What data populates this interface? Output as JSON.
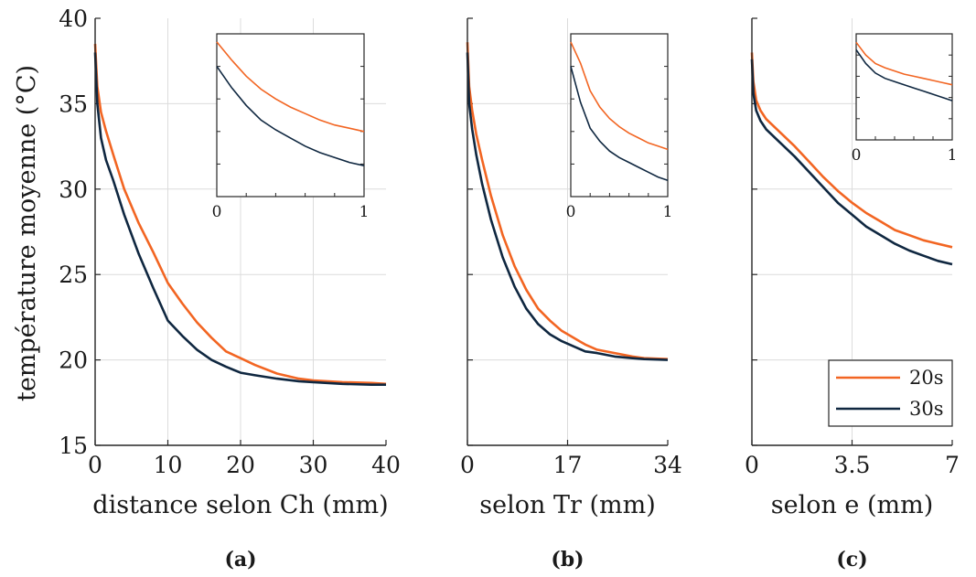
{
  "figure": {
    "ylabel": "température moyenne (°C)",
    "colors": {
      "20s": "#f26522",
      "30s": "#0f2740",
      "grid": "#dcdcdc",
      "axis": "#262626"
    }
  },
  "legend": {
    "placement": "bottom-right of panel c",
    "entries": [
      "20s",
      "30s"
    ]
  },
  "chart_data": [
    {
      "type": "line",
      "panel_label": "(a)",
      "xlabel": "distance selon Ch (mm)",
      "ylabel": "température moyenne (°C)",
      "xlim": [
        0,
        40
      ],
      "ylim": [
        15,
        40
      ],
      "xticks": [
        0,
        10,
        20,
        30,
        40
      ],
      "yticks": [
        15,
        20,
        25,
        30,
        35,
        40
      ],
      "grid": true,
      "series": [
        {
          "name": "20s",
          "color": "#f26522",
          "x": [
            0,
            0.3,
            0.8,
            1.5,
            2.5,
            4,
            6,
            8,
            10,
            12,
            14,
            16,
            18,
            20,
            22,
            25,
            28,
            30,
            34,
            38,
            40
          ],
          "y": [
            38.5,
            36,
            34.5,
            33.4,
            32,
            30,
            28,
            26.3,
            24.5,
            23.3,
            22.2,
            21.3,
            20.5,
            20.1,
            19.7,
            19.2,
            18.9,
            18.8,
            18.7,
            18.65,
            18.6
          ]
        },
        {
          "name": "30s",
          "color": "#0f2740",
          "x": [
            0,
            0.3,
            0.8,
            1.5,
            2.5,
            4,
            6,
            8,
            10,
            12,
            14,
            16,
            18,
            20,
            22,
            25,
            28,
            30,
            34,
            38,
            40
          ],
          "y": [
            38,
            35,
            33,
            31.7,
            30.5,
            28.5,
            26.2,
            24.2,
            22.3,
            21.4,
            20.6,
            20,
            19.6,
            19.25,
            19.1,
            18.9,
            18.75,
            18.7,
            18.6,
            18.55,
            18.55
          ]
        }
      ],
      "inset": {
        "xticks": [
          0,
          1
        ],
        "series": [
          {
            "name": "20s",
            "x": [
              0,
              0.1,
              0.2,
              0.3,
              0.4,
              0.5,
              0.6,
              0.7,
              0.8,
              0.9,
              1
            ],
            "y": [
              0.95,
              0.84,
              0.74,
              0.66,
              0.6,
              0.55,
              0.51,
              0.47,
              0.44,
              0.42,
              0.4
            ]
          },
          {
            "name": "30s",
            "x": [
              0,
              0.1,
              0.2,
              0.3,
              0.4,
              0.5,
              0.6,
              0.7,
              0.8,
              0.9,
              1
            ],
            "y": [
              0.8,
              0.67,
              0.56,
              0.47,
              0.41,
              0.36,
              0.31,
              0.27,
              0.24,
              0.21,
              0.19
            ]
          }
        ]
      }
    },
    {
      "type": "line",
      "panel_label": "(b)",
      "xlabel": "selon Tr (mm)",
      "xlim": [
        0,
        34
      ],
      "ylim": [
        15,
        40
      ],
      "xticks": [
        0,
        17,
        34
      ],
      "xticklabels": [
        "0",
        "17",
        "34"
      ],
      "yticks": [
        15,
        20,
        25,
        30,
        35,
        40
      ],
      "grid": true,
      "series": [
        {
          "name": "20s",
          "color": "#f26522",
          "x": [
            0,
            0.3,
            0.8,
            1.5,
            2.5,
            4,
            6,
            8,
            10,
            12,
            14,
            16,
            18,
            20,
            22,
            25,
            28,
            30,
            34
          ],
          "y": [
            38.6,
            36,
            34.6,
            33.2,
            31.7,
            29.6,
            27.3,
            25.5,
            24.1,
            23,
            22.3,
            21.7,
            21.3,
            20.9,
            20.6,
            20.4,
            20.2,
            20.1,
            20.05
          ]
        },
        {
          "name": "30s",
          "color": "#0f2740",
          "x": [
            0,
            0.3,
            0.8,
            1.5,
            2.5,
            4,
            6,
            8,
            10,
            12,
            14,
            16,
            18,
            20,
            22,
            25,
            28,
            30,
            34
          ],
          "y": [
            38,
            35,
            33.5,
            32,
            30.3,
            28.2,
            26,
            24.3,
            23,
            22.1,
            21.5,
            21.1,
            20.8,
            20.5,
            20.4,
            20.2,
            20.1,
            20.05,
            20
          ]
        }
      ],
      "inset": {
        "xticks": [
          0,
          1
        ],
        "series": [
          {
            "name": "20s",
            "x": [
              0,
              0.1,
              0.2,
              0.3,
              0.4,
              0.5,
              0.6,
              0.7,
              0.8,
              0.9,
              1
            ],
            "y": [
              0.95,
              0.82,
              0.65,
              0.55,
              0.48,
              0.43,
              0.39,
              0.36,
              0.33,
              0.31,
              0.29
            ]
          },
          {
            "name": "30s",
            "x": [
              0,
              0.1,
              0.2,
              0.3,
              0.4,
              0.5,
              0.6,
              0.7,
              0.8,
              0.9,
              1
            ],
            "y": [
              0.8,
              0.58,
              0.42,
              0.34,
              0.28,
              0.24,
              0.21,
              0.18,
              0.15,
              0.12,
              0.1
            ]
          }
        ]
      }
    },
    {
      "type": "line",
      "panel_label": "(c)",
      "xlabel": "selon e (mm)",
      "xlim": [
        0,
        7
      ],
      "ylim": [
        15,
        40
      ],
      "xticks": [
        0,
        3.5,
        7
      ],
      "xticklabels": [
        "0",
        "3.5",
        "7"
      ],
      "yticks": [
        15,
        20,
        25,
        30,
        35,
        40
      ],
      "grid": true,
      "series": [
        {
          "name": "20s",
          "color": "#f26522",
          "x": [
            0,
            0.05,
            0.15,
            0.3,
            0.5,
            1,
            1.5,
            2,
            2.5,
            3,
            3.5,
            4,
            4.5,
            5,
            5.5,
            6,
            6.5,
            7
          ],
          "y": [
            38,
            36.3,
            35.2,
            34.6,
            34.1,
            33.3,
            32.5,
            31.6,
            30.7,
            29.9,
            29.2,
            28.6,
            28.1,
            27.6,
            27.3,
            27,
            26.8,
            26.6
          ]
        },
        {
          "name": "30s",
          "color": "#0f2740",
          "x": [
            0,
            0.05,
            0.15,
            0.3,
            0.5,
            1,
            1.5,
            2,
            2.5,
            3,
            3.5,
            4,
            4.5,
            5,
            5.5,
            6,
            6.5,
            7
          ],
          "y": [
            37.6,
            35.6,
            34.6,
            34,
            33.5,
            32.7,
            31.9,
            31,
            30.1,
            29.2,
            28.5,
            27.8,
            27.3,
            26.8,
            26.4,
            26.1,
            25.8,
            25.6
          ]
        }
      ],
      "inset": {
        "xticks": [
          0,
          1
        ],
        "series": [
          {
            "name": "20s",
            "x": [
              0,
              0.1,
              0.2,
              0.3,
              0.4,
              0.5,
              0.6,
              0.7,
              0.8,
              0.9,
              1
            ],
            "y": [
              0.92,
              0.8,
              0.72,
              0.68,
              0.65,
              0.62,
              0.6,
              0.58,
              0.56,
              0.54,
              0.52
            ]
          },
          {
            "name": "30s",
            "x": [
              0,
              0.1,
              0.2,
              0.3,
              0.4,
              0.5,
              0.6,
              0.7,
              0.8,
              0.9,
              1
            ],
            "y": [
              0.85,
              0.72,
              0.63,
              0.58,
              0.55,
              0.52,
              0.49,
              0.46,
              0.43,
              0.4,
              0.37
            ]
          }
        ]
      }
    }
  ]
}
